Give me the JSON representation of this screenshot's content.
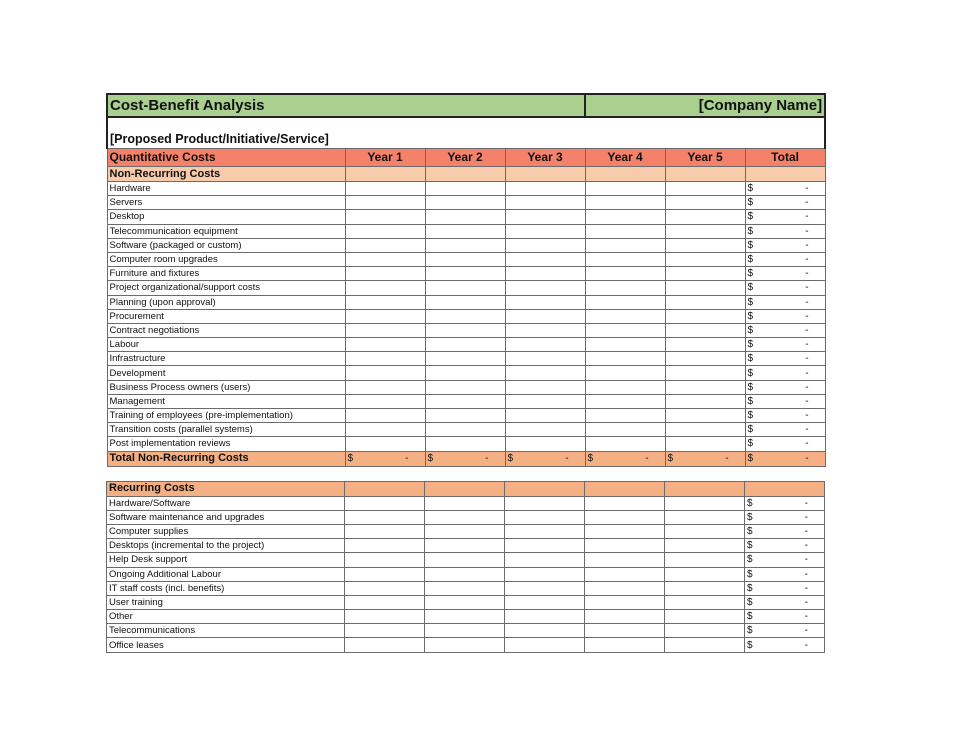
{
  "title": "Cost-Benefit Analysis",
  "company": "[Company Name]",
  "subtitle": "[Proposed Product/Initiative/Service]",
  "header": {
    "label": "Quantitative Costs",
    "years": [
      "Year 1",
      "Year 2",
      "Year 3",
      "Year 4",
      "Year 5"
    ],
    "total": "Total"
  },
  "currency": "$",
  "dash": "-",
  "colors": {
    "title_bg": "#a9d08e",
    "header_bg": "#f4826a",
    "section_bg": "#f8cbad",
    "total_bg": "#f4b083"
  },
  "non_recurring": {
    "label": "Non-Recurring Costs",
    "items": [
      "Hardware",
      "Servers",
      "Desktop",
      "Telecommunication equipment",
      "Software (packaged or custom)",
      "Computer room upgrades",
      "Furniture and fixtures",
      "Project organizational/support costs",
      "Planning (upon approval)",
      "Procurement",
      "Contract negotiations",
      "Labour",
      "Infrastructure",
      "Development",
      "Business Process owners (users)",
      "Management",
      "Training of employees (pre-implementation)",
      "Transition costs (parallel systems)",
      "Post implementation reviews"
    ],
    "total_label": "Total Non-Recurring Costs"
  },
  "recurring": {
    "label": "Recurring Costs",
    "items": [
      "Hardware/Software",
      "Software maintenance and upgrades",
      "Computer supplies",
      "Desktops (incremental to the project)",
      "Help Desk support",
      "Ongoing Additional Labour",
      "IT staff costs (incl. benefits)",
      "User training",
      "Other",
      "Telecommunications",
      "Office leases"
    ]
  }
}
